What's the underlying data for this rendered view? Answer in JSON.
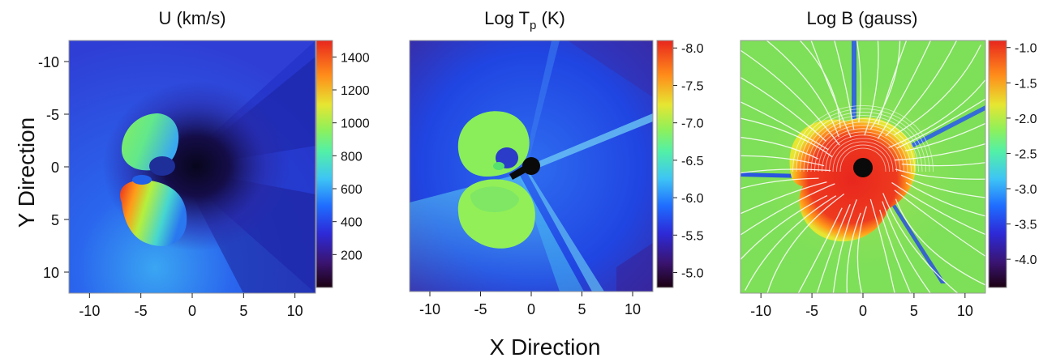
{
  "figure": {
    "xlabel": "X Direction",
    "ylabel": "Y Direction"
  },
  "chart_data": [
    {
      "type": "heatmap",
      "title": "U (km/s)",
      "xlabel": "X Direction",
      "ylabel": "Y Direction",
      "xlim": [
        -12,
        12
      ],
      "ylim": [
        12,
        -12
      ],
      "y_inverted": true,
      "xticks": [
        -10,
        -5,
        0,
        5,
        10
      ],
      "yticks": [
        -10,
        -5,
        0,
        5,
        10
      ],
      "colorbar": {
        "range": [
          0,
          1500
        ],
        "ticks": [
          200,
          400,
          600,
          800,
          1000,
          1200,
          1400
        ],
        "colormap": [
          "#1a0010",
          "#3a1470",
          "#2d2ad8",
          "#1f6cff",
          "#3ec4f5",
          "#52f0a8",
          "#8ff05a",
          "#e6e632",
          "#ff8c1a",
          "#e8261e"
        ]
      },
      "features": {
        "background": "#2b50e8",
        "dark_region_center": [
          0,
          0
        ],
        "dark_color": "#0e0a38",
        "structure": "double-lobed shell left of the origin, peak speed ~1400 km/s near X=-6, Y=5"
      }
    },
    {
      "type": "heatmap",
      "title": "Log T",
      "title_subscript": "p",
      "title_suffix": " (K)",
      "xlim": [
        -12,
        12
      ],
      "ylim": [
        12,
        -12
      ],
      "y_inverted": true,
      "xticks": [
        -10,
        -5,
        0,
        5,
        10
      ],
      "yticks": [],
      "colorbar": {
        "range": [
          -4.8,
          -8.1
        ],
        "ticks": [
          "-8.0",
          "-7.5",
          "-7.0",
          "-6.5",
          "-6.0",
          "-5.5",
          "-5.0"
        ],
        "colormap": [
          "#1a0010",
          "#3a1470",
          "#2d2ad8",
          "#1f6cff",
          "#3ec4f5",
          "#52f0a8",
          "#8ff05a",
          "#e6e632",
          "#ff8c1a",
          "#e8261e"
        ]
      },
      "features": {
        "background": "#1d45e6",
        "occulter_center": [
          0,
          0
        ],
        "structure": "green double-lobed shell, value ~-6.8"
      }
    },
    {
      "type": "heatmap",
      "title": "Log B (gauss)",
      "xlim": [
        -12,
        12
      ],
      "ylim": [
        12,
        -12
      ],
      "y_inverted": true,
      "xticks": [
        -10,
        -5,
        0,
        5,
        10
      ],
      "yticks": [],
      "colorbar": {
        "range": [
          -4.4,
          -0.9
        ],
        "ticks": [
          "-1.0",
          "-1.5",
          "-2.0",
          "-2.5",
          "-3.0",
          "-3.5",
          "-4.0"
        ],
        "colormap": [
          "#1a0010",
          "#3a1470",
          "#2d2ad8",
          "#1f6cff",
          "#3ec4f5",
          "#52f0a8",
          "#8ff05a",
          "#e6e632",
          "#ff8c1a",
          "#e8261e"
        ]
      },
      "features": {
        "background": "#7ee05a",
        "occulter_center": [
          0,
          0
        ],
        "structure": "red magnetic flux-rope region around origin with white field lines"
      }
    }
  ]
}
